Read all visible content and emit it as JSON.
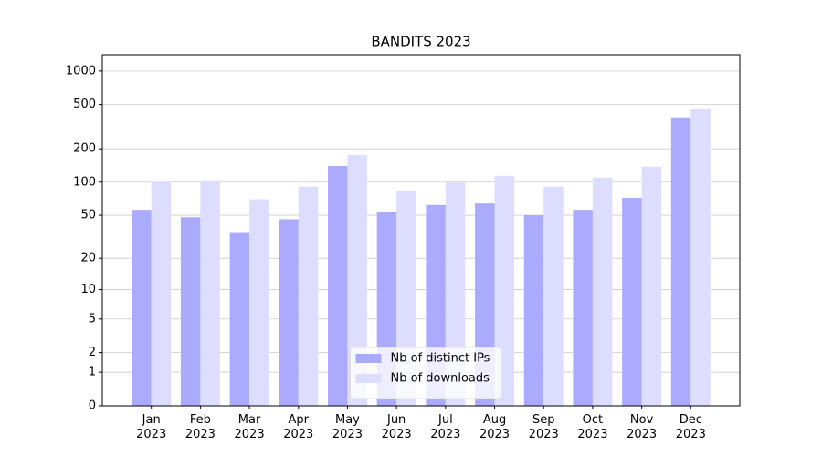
{
  "chart_data": {
    "type": "bar",
    "title": "BANDITS 2023",
    "scale": "log1p",
    "categories": [
      "Jan\n2023",
      "Feb\n2023",
      "Mar\n2023",
      "Apr\n2023",
      "May\n2023",
      "Jun\n2023",
      "Jul\n2023",
      "Aug\n2023",
      "Sep\n2023",
      "Oct\n2023",
      "Nov\n2023",
      "Dec\n2023"
    ],
    "series": [
      {
        "name": "Nb of distinct IPs",
        "color": "#aaaaff",
        "values": [
          56,
          48,
          35,
          46,
          140,
          54,
          62,
          64,
          50,
          56,
          72,
          383
        ]
      },
      {
        "name": "Nb of downloads",
        "color": "#ddddff",
        "values": [
          101,
          104,
          70,
          91,
          176,
          84,
          99,
          114,
          91,
          110,
          138,
          462
        ]
      }
    ],
    "ylim": [
      0,
      1400
    ],
    "yticks": [
      0,
      1,
      2,
      5,
      10,
      20,
      50,
      100,
      200,
      500,
      1000
    ],
    "grid": true,
    "legend": "lower center"
  }
}
